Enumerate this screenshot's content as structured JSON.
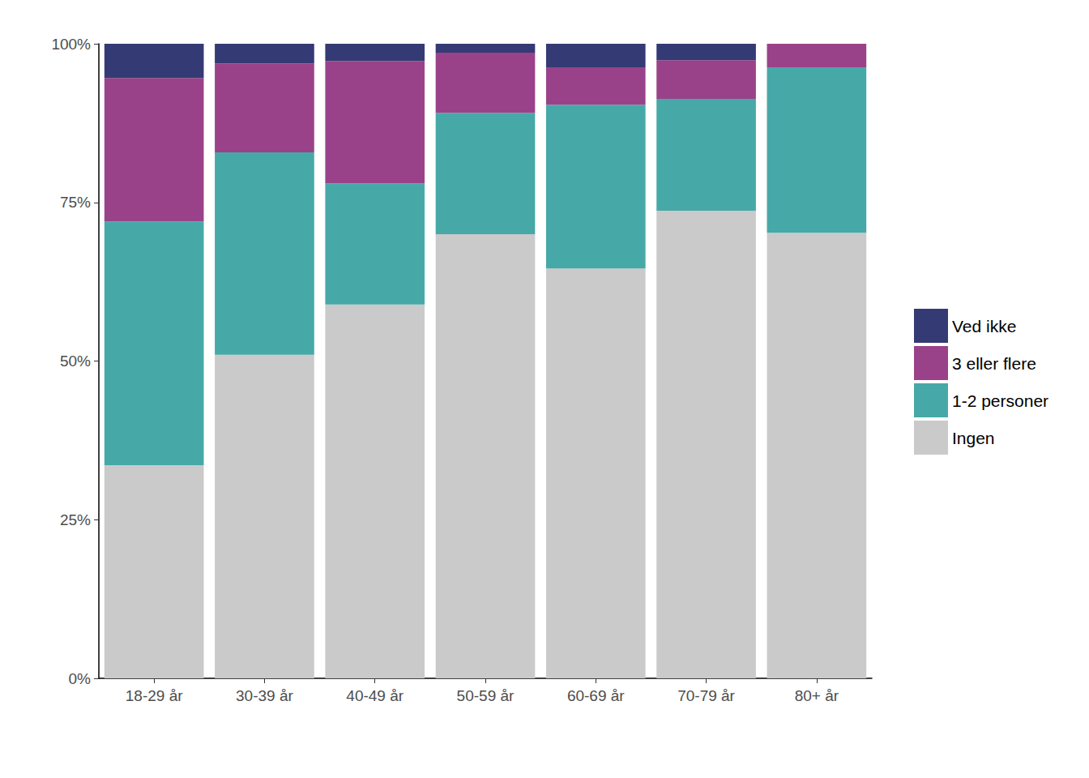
{
  "chart_data": {
    "type": "bar",
    "stacked": true,
    "grid": false,
    "legend": "right",
    "categories": [
      "18-29 år",
      "30-39 år",
      "40-49 år",
      "50-59 år",
      "60-69 år",
      "70-79 år",
      "80+ år"
    ],
    "series": [
      {
        "name": "Ingen",
        "color": "#cacaca",
        "values": [
          33.6,
          51.0,
          58.9,
          70.0,
          64.6,
          73.7,
          70.2
        ]
      },
      {
        "name": "1-2 personer",
        "color": "#46a9a8",
        "values": [
          38.4,
          31.9,
          19.1,
          19.1,
          25.8,
          17.6,
          26.1
        ]
      },
      {
        "name": "3 eller flere",
        "color": "#9a4289",
        "values": [
          22.6,
          14.0,
          19.3,
          9.5,
          5.9,
          6.1,
          3.7
        ]
      },
      {
        "name": "Ved ikke",
        "color": "#343a74",
        "values": [
          5.4,
          3.1,
          2.7,
          1.4,
          3.7,
          2.6,
          0
        ]
      }
    ],
    "ylim": [
      0,
      100
    ],
    "yticks": [
      {
        "value": 0,
        "label": "0%"
      },
      {
        "value": 25,
        "label": "25%"
      },
      {
        "value": 50,
        "label": "50%"
      },
      {
        "value": 75,
        "label": "75%"
      },
      {
        "value": 100,
        "label": "100%"
      }
    ]
  }
}
